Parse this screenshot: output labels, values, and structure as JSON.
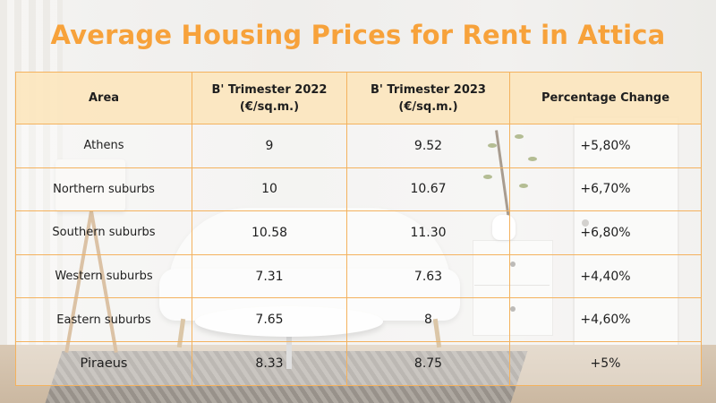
{
  "title": "Average Housing Prices for Rent in Attica",
  "table": {
    "headers": [
      {
        "line1": "Area",
        "line2": ""
      },
      {
        "line1": "B' Trimester 2022",
        "line2": "(€/sq.m.)"
      },
      {
        "line1": "B' Trimester 2023",
        "line2": "(€/sq.m.)"
      },
      {
        "line1": "Percentage Change",
        "line2": ""
      }
    ],
    "rows": [
      {
        "area": "Athens",
        "t2022": "9",
        "t2023": "9.52",
        "change": "+5,80%"
      },
      {
        "area": "Northern suburbs",
        "t2022": "10",
        "t2023": "10.67",
        "change": "+6,70%"
      },
      {
        "area": "Southern suburbs",
        "t2022": "10.58",
        "t2023": "11.30",
        "change": "+6,80%"
      },
      {
        "area": "Western suburbs",
        "t2022": "7.31",
        "t2023": "7.63",
        "change": "+4,40%"
      },
      {
        "area": "Eastern suburbs",
        "t2022": "7.65",
        "t2023": "8",
        "change": "+4,60%"
      },
      {
        "area": "Piraeus",
        "t2022": "8.33",
        "t2023": "8.75",
        "change": "+5%"
      }
    ]
  },
  "colors": {
    "title": "#f7a23b",
    "border": "#f4b25e",
    "header_bg": "#fce6be"
  }
}
